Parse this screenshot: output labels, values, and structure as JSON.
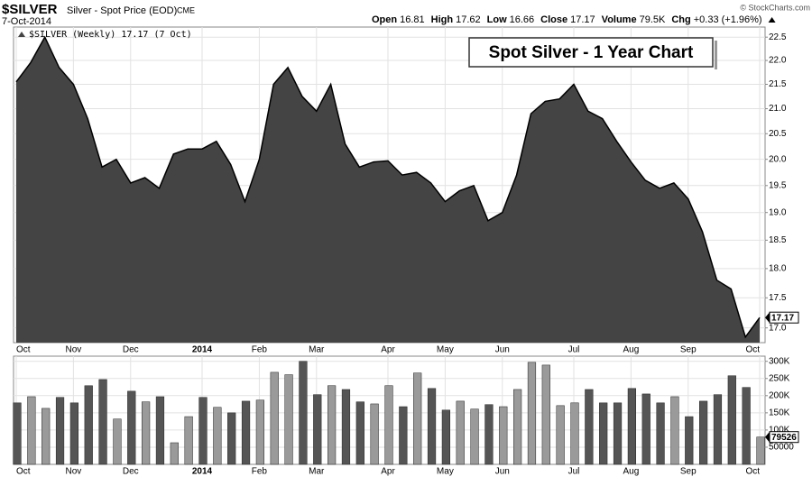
{
  "header": {
    "symbol": "$SILVER",
    "name": "Silver - Spot Price (EOD)",
    "exchange": "CME",
    "date": "7-Oct-2014",
    "stats": [
      {
        "label": "Open",
        "value": "16.81"
      },
      {
        "label": "High",
        "value": "17.62"
      },
      {
        "label": "Low",
        "value": "16.66"
      },
      {
        "label": "Close",
        "value": "17.17"
      },
      {
        "label": "Volume",
        "value": "79.5K"
      },
      {
        "label": "Chg",
        "value": "+0.33 (+1.96%)"
      }
    ],
    "credit": "© StockCharts.com"
  },
  "chart_data": [
    {
      "type": "area",
      "title": "Spot Silver - 1 Year Chart",
      "categories": [
        "Oct",
        null,
        null,
        null,
        "Nov",
        null,
        null,
        null,
        "Dec",
        null,
        null,
        null,
        null,
        "2014",
        null,
        null,
        null,
        "Feb",
        null,
        null,
        null,
        "Mar",
        null,
        null,
        null,
        null,
        "Apr",
        null,
        null,
        null,
        "May",
        null,
        null,
        null,
        "Jun",
        null,
        null,
        null,
        null,
        "Jul",
        null,
        null,
        null,
        "Aug",
        null,
        null,
        null,
        "Sep",
        null,
        null,
        null,
        null,
        "Oct"
      ],
      "series": [
        {
          "name": "$SILVER (Weekly) 17.17 (7 Oct)",
          "color": "#444444",
          "values": [
            21.55,
            21.95,
            22.5,
            21.85,
            21.5,
            20.8,
            19.85,
            20.0,
            19.55,
            19.65,
            19.45,
            20.1,
            20.2,
            20.2,
            20.35,
            19.9,
            19.2,
            20.0,
            21.5,
            21.85,
            21.25,
            20.95,
            21.5,
            20.3,
            19.85,
            19.95,
            19.97,
            19.7,
            19.75,
            19.55,
            19.2,
            19.4,
            19.5,
            18.85,
            19.0,
            19.7,
            20.9,
            21.15,
            21.2,
            21.5,
            20.95,
            20.8,
            20.35,
            19.95,
            19.6,
            19.45,
            19.55,
            19.25,
            18.65,
            17.8,
            17.65,
            16.85,
            17.17
          ]
        }
      ],
      "ylim": [
        16.76,
        22.72
      ],
      "log_scale": true,
      "yticks": [
        {
          "value": 17,
          "label": "17.0"
        },
        17.5,
        {
          "value": 18,
          "label": "18.0"
        },
        18.5,
        {
          "value": 19,
          "label": "19.0"
        },
        19.5,
        {
          "value": 20,
          "label": "20.0"
        },
        20.5,
        {
          "value": 21,
          "label": "21.0"
        },
        21.5,
        {
          "value": 22,
          "label": "22.0"
        },
        22.5
      ],
      "grid": true
    },
    {
      "type": "bar",
      "series": [
        {
          "name": "Volume",
          "up_color": "#9a9a9a",
          "down_color": "#555555",
          "values": [
            179000,
            197000,
            163000,
            195000,
            179000,
            229000,
            247000,
            132000,
            213000,
            182000,
            197000,
            63000,
            139000,
            195000,
            166000,
            150000,
            184000,
            187000,
            268000,
            261000,
            300000,
            203000,
            229000,
            218000,
            182000,
            176000,
            229000,
            168000,
            266000,
            221000,
            158000,
            184000,
            161000,
            174000,
            168000,
            218000,
            297000,
            289000,
            171000,
            179000,
            218000,
            179000,
            179000,
            221000,
            205000,
            179000,
            197000,
            139000,
            184000,
            203000,
            258000,
            224000,
            79526
          ]
        }
      ],
      "ylim": [
        0,
        315000
      ],
      "yticks": [
        50000,
        {
          "value": 100000,
          "label": "100K"
        },
        {
          "value": 150000,
          "label": "150K"
        },
        {
          "value": 200000,
          "label": "200K"
        },
        {
          "value": 250000,
          "label": "250K"
        },
        {
          "value": 300000,
          "label": "300K"
        }
      ],
      "grid": true
    }
  ]
}
